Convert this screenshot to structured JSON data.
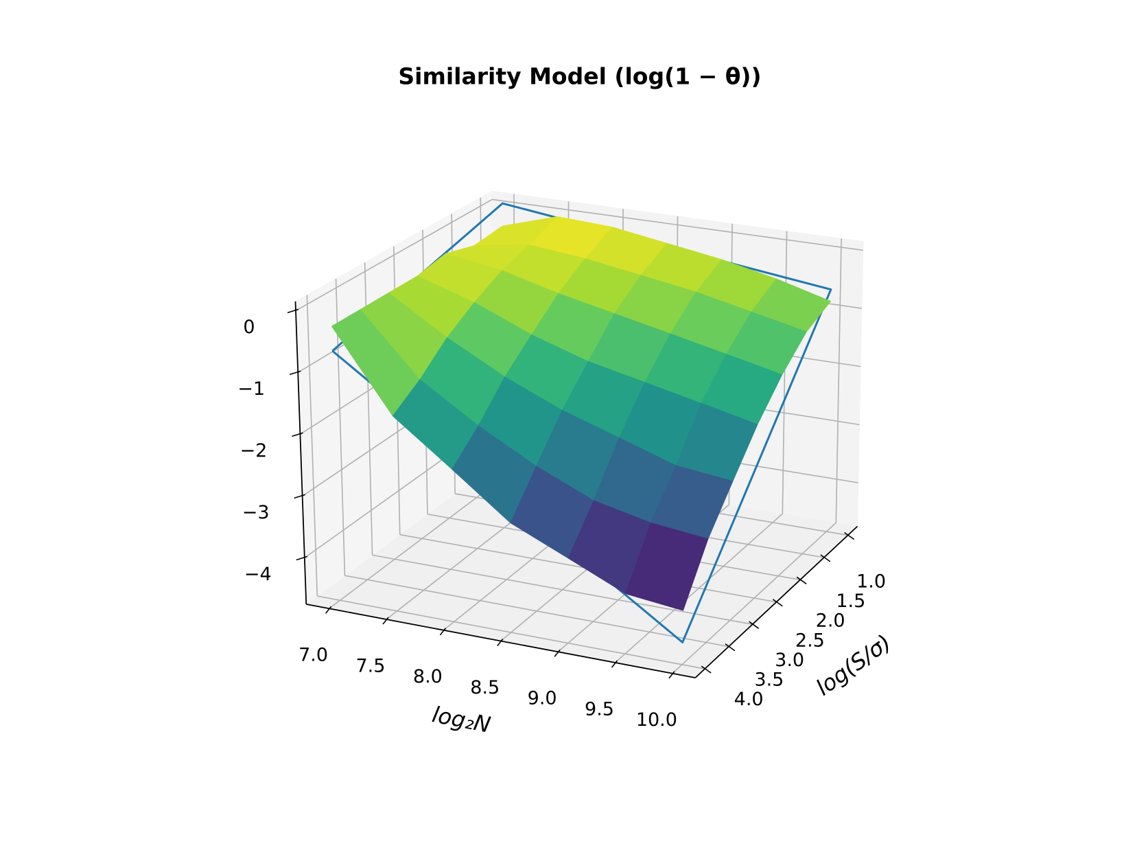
{
  "chart_data": {
    "type": "surface",
    "title": "Similarity Model (log(1 − θ))",
    "xlabel": "log₂N",
    "ylabel": "log(S/σ)",
    "x": [
      7,
      7.5,
      8,
      8.5,
      9,
      9.5,
      10
    ],
    "y": [
      1,
      1.5,
      2,
      2.5,
      3,
      3.5,
      4
    ],
    "z": [
      [
        -0.3,
        0.0,
        -0.05,
        -0.2,
        -0.35,
        -0.55,
        -0.8
      ],
      [
        -0.35,
        -0.2,
        -0.3,
        -0.45,
        -0.6,
        -0.8,
        -1.0
      ],
      [
        -0.2,
        -0.35,
        -0.6,
        -0.8,
        -1.0,
        -1.2,
        -1.4
      ],
      [
        -0.3,
        -0.6,
        -1.0,
        -1.3,
        -1.5,
        -1.7,
        -1.9
      ],
      [
        -0.3,
        -0.9,
        -1.4,
        -1.8,
        -2.1,
        -2.4,
        -2.5
      ],
      [
        -0.3,
        -1.3,
        -1.9,
        -2.4,
        -2.8,
        -3.0,
        -3.1
      ],
      [
        -0.3,
        -1.6,
        -2.3,
        -3.0,
        -3.4,
        -3.8,
        -3.9
      ]
    ],
    "colormap": "viridis",
    "fit_outline": {
      "color": "#1f77b4",
      "x": [
        7,
        10,
        10,
        7,
        7
      ],
      "y": [
        4,
        4,
        1,
        1,
        4
      ],
      "z": [
        -0.7,
        -4.4,
        -0.6,
        0.1,
        -0.7
      ]
    },
    "xlim": [
      6.8,
      10.2
    ],
    "ylim": [
      0.8,
      4.2
    ],
    "zlim": [
      -4.75,
      0.15
    ],
    "xticks": [
      {
        "value": 7,
        "label": "7.0"
      },
      {
        "value": 7.5,
        "label": "7.5"
      },
      {
        "value": 8,
        "label": "8.0"
      },
      {
        "value": 8.5,
        "label": "8.5"
      },
      {
        "value": 9,
        "label": "9.0"
      },
      {
        "value": 9.5,
        "label": "9.5"
      },
      {
        "value": 10,
        "label": "10.0"
      }
    ],
    "yticks": [
      {
        "value": 1,
        "label": "1.0"
      },
      {
        "value": 1.5,
        "label": "1.5"
      },
      {
        "value": 2,
        "label": "2.0"
      },
      {
        "value": 2.5,
        "label": "2.5"
      },
      {
        "value": 3,
        "label": "3.0"
      },
      {
        "value": 3.5,
        "label": "3.5"
      },
      {
        "value": 4,
        "label": "4.0"
      }
    ],
    "zticks": [
      {
        "value": -4,
        "label": "−4"
      },
      {
        "value": -3,
        "label": "−3"
      },
      {
        "value": -2,
        "label": "−2"
      },
      {
        "value": -1,
        "label": "−1"
      },
      0
    ],
    "grid": true
  }
}
